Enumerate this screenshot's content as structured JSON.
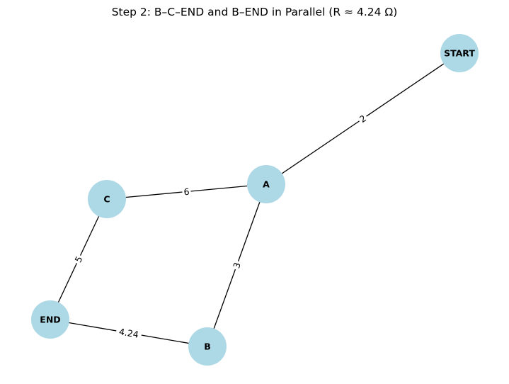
{
  "title": "Step 2: B–C–END and B–END in Parallel (R ≈ 4.24 Ω)",
  "colors": {
    "node_fill": "#add8e6",
    "edge": "#000000",
    "text": "#000000"
  },
  "nodes": [
    {
      "id": "START",
      "label": "START"
    },
    {
      "id": "A",
      "label": "A"
    },
    {
      "id": "B",
      "label": "B"
    },
    {
      "id": "C",
      "label": "C"
    },
    {
      "id": "END",
      "label": "END"
    }
  ],
  "edges": [
    {
      "source": "START",
      "target": "A",
      "label": "2"
    },
    {
      "source": "A",
      "target": "C",
      "label": "6"
    },
    {
      "source": "A",
      "target": "B",
      "label": "3"
    },
    {
      "source": "C",
      "target": "END",
      "label": "5"
    },
    {
      "source": "END",
      "target": "B",
      "label": "4.24"
    }
  ]
}
